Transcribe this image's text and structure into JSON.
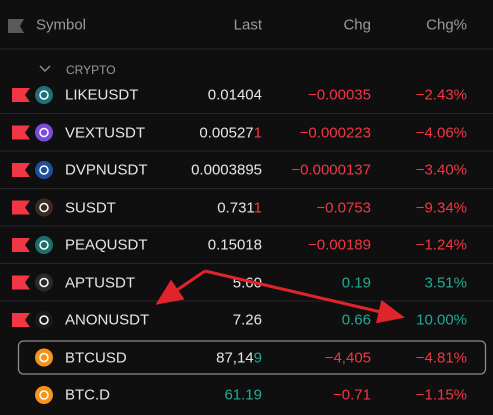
{
  "header": {
    "symbol": "Symbol",
    "last": "Last",
    "chg": "Chg",
    "chg_pct": "Chg%"
  },
  "group": "CRYPTO",
  "rows": [
    {
      "symbol": "LIKEUSDT",
      "last": [
        {
          "text": "0.01404",
          "color": "#e6e6e6"
        }
      ],
      "chg": "−0.00035",
      "chg_pct": "−2.43%",
      "chg_color": "#f23645",
      "flag": true,
      "icon": "#1f6f7a"
    },
    {
      "symbol": "VEXTUSDT",
      "last": [
        {
          "text": "0.00527",
          "color": "#e6e6e6"
        },
        {
          "text": "1",
          "color": "#f23645"
        }
      ],
      "chg": "−0.000223",
      "chg_pct": "−4.06%",
      "chg_color": "#f23645",
      "flag": true,
      "icon": "#7b4bd9"
    },
    {
      "symbol": "DVPNUSDT",
      "last": [
        {
          "text": "0.0003895",
          "color": "#e6e6e6"
        }
      ],
      "chg": "−0.0000137",
      "chg_pct": "−3.40%",
      "chg_color": "#f23645",
      "flag": true,
      "icon": "#1e4f9a"
    },
    {
      "symbol": "SUSDT",
      "last": [
        {
          "text": "0.731",
          "color": "#e6e6e6"
        },
        {
          "text": "1",
          "color": "#f23645"
        }
      ],
      "chg": "−0.0753",
      "chg_pct": "−9.34%",
      "chg_color": "#f23645",
      "flag": true,
      "icon": "#3a2a22"
    },
    {
      "symbol": "PEAQUSDT",
      "last": [
        {
          "text": "0.15018",
          "color": "#e6e6e6"
        }
      ],
      "chg": "−0.00189",
      "chg_pct": "−1.24%",
      "chg_color": "#f23645",
      "flag": true,
      "icon": "#1c6f6a"
    },
    {
      "symbol": "APTUSDT",
      "last": [
        {
          "text": "5.60",
          "color": "#e6e6e6"
        }
      ],
      "chg": "0.19",
      "chg_pct": "3.51%",
      "chg_color": "#22ab94",
      "flag": true,
      "icon": "#2a2a2a"
    },
    {
      "symbol": "ANONUSDT",
      "last": [
        {
          "text": "7.26",
          "color": "#e6e6e6"
        }
      ],
      "chg": "0.66",
      "chg_pct": "10.00%",
      "chg_color": "#22ab94",
      "flag": true,
      "icon": "#1a1a1a"
    },
    {
      "symbol": "BTCUSD",
      "last": [
        {
          "text": "87,14",
          "color": "#e6e6e6"
        },
        {
          "text": "9",
          "color": "#22ab94"
        }
      ],
      "chg": "−4,405",
      "chg_pct": "−4.81%",
      "chg_color": "#f23645",
      "flag": false,
      "icon": "#f7931a",
      "selected": true
    },
    {
      "symbol": "BTC.D",
      "last": [
        {
          "text": "61.19",
          "color": "#22ab94"
        }
      ],
      "chg": "−0.71",
      "chg_pct": "−1.15%",
      "chg_color": "#f23645",
      "flag": false,
      "icon": "#f7931a"
    }
  ]
}
